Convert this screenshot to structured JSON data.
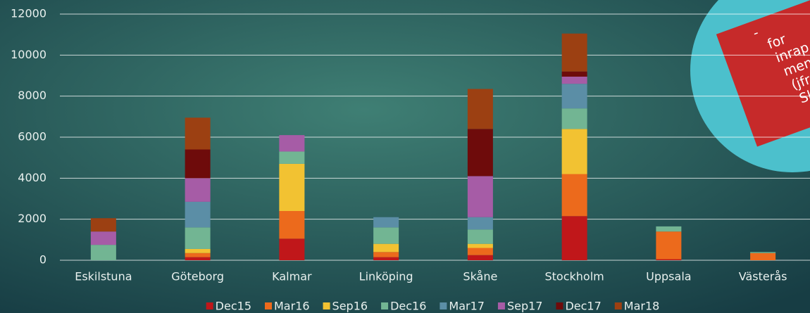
{
  "chart_data": {
    "type": "bar",
    "stacked": true,
    "categories": [
      "Eskilstuna",
      "Göteborg",
      "Kalmar",
      "Linköping",
      "Skåne",
      "Stockholm",
      "Uppsala",
      "Västerås"
    ],
    "series": [
      {
        "name": "Dec15",
        "color": "#c0171a",
        "values": [
          0,
          150,
          1050,
          150,
          250,
          2150,
          50,
          0
        ]
      },
      {
        "name": "Mar16",
        "color": "#ec6a1c",
        "values": [
          0,
          200,
          1350,
          250,
          350,
          2050,
          1350,
          350
        ]
      },
      {
        "name": "Sep16",
        "color": "#f2c232",
        "values": [
          0,
          200,
          2300,
          400,
          200,
          2200,
          0,
          0
        ]
      },
      {
        "name": "Dec16",
        "color": "#72b593",
        "values": [
          750,
          1050,
          600,
          800,
          700,
          1000,
          250,
          50
        ]
      },
      {
        "name": "Mar17",
        "color": "#5b8ea6",
        "values": [
          0,
          1250,
          0,
          500,
          600,
          1200,
          0,
          0
        ]
      },
      {
        "name": "Sep17",
        "color": "#a65ca6",
        "values": [
          650,
          1150,
          800,
          0,
          2000,
          350,
          0,
          0
        ]
      },
      {
        "name": "Dec17",
        "color": "#6e0b0b",
        "values": [
          0,
          1400,
          0,
          0,
          2300,
          250,
          0,
          0
        ]
      },
      {
        "name": "Mar18",
        "color": "#9c4012",
        "values": [
          650,
          1550,
          0,
          0,
          1950,
          1850,
          0,
          0
        ]
      }
    ],
    "ylim": [
      0,
      12000
    ],
    "yticks": [
      0,
      2000,
      4000,
      6000,
      8000,
      10000,
      12000
    ],
    "grid": true,
    "legend": "bottom"
  },
  "callout": {
    "lines": [
      "-",
      "for",
      "inrap",
      "men",
      "(jfr Gö",
      "Skåne)"
    ]
  }
}
